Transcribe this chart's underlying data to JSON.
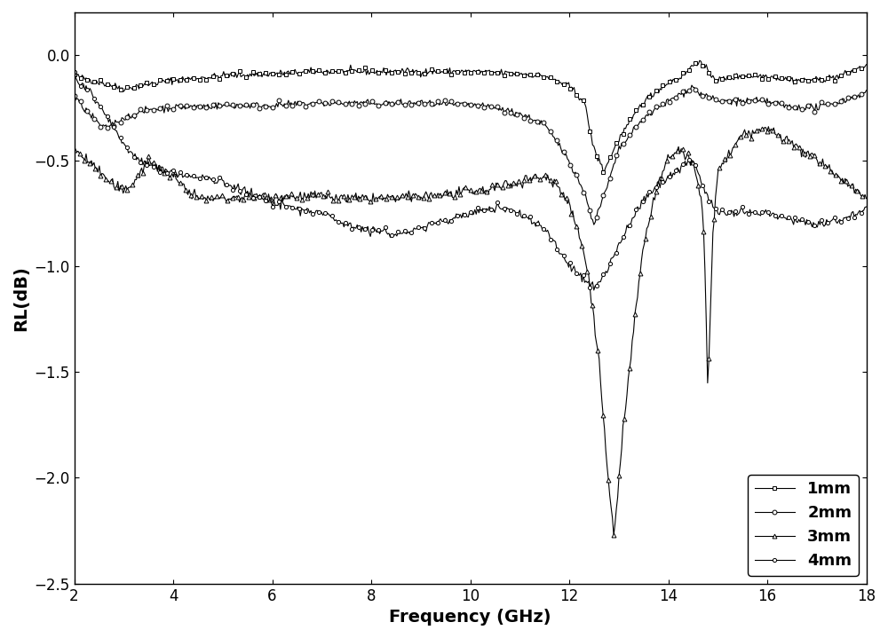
{
  "title": "",
  "xlabel": "Frequency (GHz)",
  "ylabel": "RL(dB)",
  "xlim": [
    2,
    18
  ],
  "ylim": [
    -2.5,
    0.2
  ],
  "yticks": [
    0.0,
    -0.5,
    -1.0,
    -1.5,
    -2.0,
    -2.5
  ],
  "xticks": [
    2,
    4,
    6,
    8,
    10,
    12,
    14,
    16,
    18
  ],
  "legend_labels": [
    "1mm",
    "2mm",
    "3mm",
    "4mm"
  ],
  "markers": [
    "s",
    "o",
    "^",
    "o"
  ],
  "colors": [
    "black",
    "black",
    "black",
    "black"
  ],
  "linewidth": 0.8,
  "markersizes": [
    3.5,
    3.5,
    3.5,
    3.0
  ],
  "background_color": "#ffffff",
  "legend_fontsize": 13,
  "axis_label_fontsize": 14,
  "tick_fontsize": 12
}
